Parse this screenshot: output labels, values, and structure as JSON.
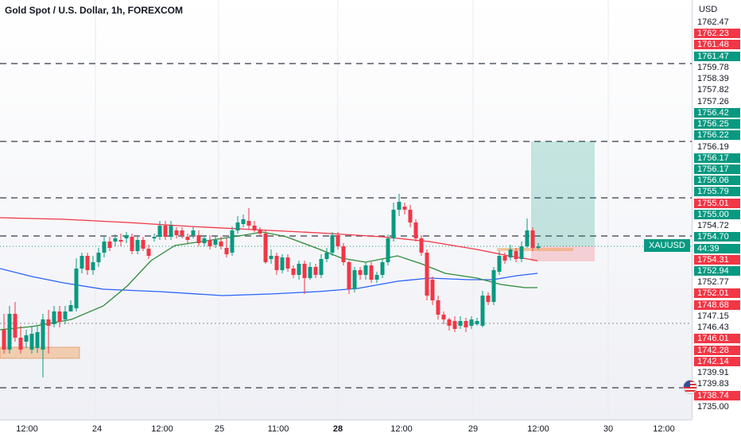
{
  "chart": {
    "title": "Gold Spot / U.S. Dollar, 1h, FOREXCOM",
    "symbol": "XAUUSD",
    "currency": "USD"
  },
  "price_labels": [
    {
      "text": "1762.47",
      "style": "plain"
    },
    {
      "text": "1762.23",
      "style": "red"
    },
    {
      "text": "1761.48",
      "style": "red"
    },
    {
      "text": "1761.47",
      "style": "green"
    },
    {
      "text": "1759.78",
      "style": "plain"
    },
    {
      "text": "1758.39",
      "style": "plain"
    },
    {
      "text": "1757.82",
      "style": "plain"
    },
    {
      "text": "1757.26",
      "style": "plain"
    },
    {
      "text": "1756.42",
      "style": "green"
    },
    {
      "text": "1756.25",
      "style": "green"
    },
    {
      "text": "1756.22",
      "style": "green"
    },
    {
      "text": "1756.19",
      "style": "plain"
    },
    {
      "text": "1756.17",
      "style": "green"
    },
    {
      "text": "1756.17",
      "style": "green"
    },
    {
      "text": "1756.06",
      "style": "green"
    },
    {
      "text": "1755.79",
      "style": "green"
    },
    {
      "text": "1755.01",
      "style": "red"
    },
    {
      "text": "1755.00",
      "style": "green"
    },
    {
      "text": "1754.72",
      "style": "plain"
    },
    {
      "text": "1754.70",
      "style": "green"
    },
    {
      "text": "44:39",
      "style": "green"
    },
    {
      "text": "1754.31",
      "style": "red"
    },
    {
      "text": "1752.94",
      "style": "green"
    },
    {
      "text": "1752.77",
      "style": "plain"
    },
    {
      "text": "1752.01",
      "style": "red"
    },
    {
      "text": "1748.68",
      "style": "red"
    },
    {
      "text": "1747.15",
      "style": "plain"
    },
    {
      "text": "1746.43",
      "style": "plain"
    },
    {
      "text": "1746.01",
      "style": "red"
    },
    {
      "text": "1742.28",
      "style": "red"
    },
    {
      "text": "1742.14",
      "style": "red"
    },
    {
      "text": "1739.91",
      "style": "plain"
    },
    {
      "text": "1739.83",
      "style": "plain"
    },
    {
      "text": "1738.74",
      "style": "red"
    },
    {
      "text": "1735.00",
      "style": "plain"
    }
  ],
  "time_labels": [
    {
      "text": "12:00",
      "bold": false
    },
    {
      "text": "24",
      "bold": false
    },
    {
      "text": "12:00",
      "bold": false
    },
    {
      "text": "25",
      "bold": false
    },
    {
      "text": "11:00",
      "bold": false
    },
    {
      "text": "28",
      "bold": true
    },
    {
      "text": "12:00",
      "bold": false
    },
    {
      "text": "29",
      "bold": false
    },
    {
      "text": "12:00",
      "bold": false
    },
    {
      "text": "30",
      "bold": false
    },
    {
      "text": "12:00",
      "bold": false
    }
  ],
  "colors": {
    "up": "#089981",
    "down": "#f23645",
    "plain_label": "#131722",
    "red_ma": "#f23645",
    "green_ma": "#2e8b3a",
    "blue_ma": "#2962ff"
  },
  "icons": [
    "us-flag-icon"
  ]
}
